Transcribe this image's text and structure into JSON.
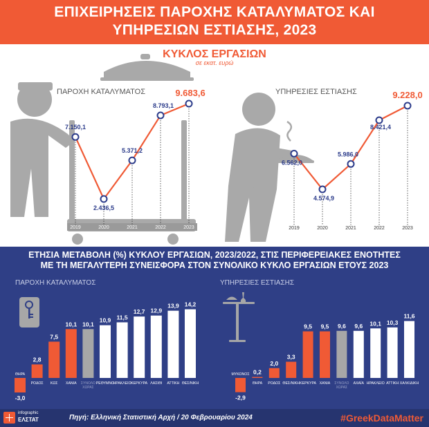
{
  "header": {
    "title_line1": "ΕΠΙΧΕΙΡΗΣΕΙΣ ΠΑΡΟΧΗΣ ΚΑΤΑΛΥΜΑΤΟΣ ΚΑΙ",
    "title_line2": "ΥΠΗΡΕΣΙΩΝ ΕΣΤΙΑΣΗΣ, 2023"
  },
  "turnover": {
    "title": "ΚΥΚΛΟΣ ΕΡΓΑΣΙΩΝ",
    "subtitle": "σε εκατ. ευρώ"
  },
  "annual": {
    "title_line1": "ΕΤΗΣΙΑ ΜΕΤΑΒΟΛΗ (%) ΚΥΚΛΟΥ ΕΡΓΑΣΙΩΝ, 2023/2022, ΣΤΙΣ ΠΕΡΙΦΕΡΕΙΑΚΕΣ ΕΝΟΤΗΤΕΣ",
    "title_line2": "ΜΕ ΤΗ ΜΕΓΑΛΥΤΕΡΗ ΣΥΝΕΙΣΦΟΡΑ ΣΤΟΝ ΣΥΝΟΛΙΚΟ ΚΥΚΛΟ ΕΡΓΑΣΙΩΝ ΕΤΟΥΣ 2023"
  },
  "footer": {
    "logo_line1": "infographic",
    "logo_line2": "ΕΛΣΤΑΤ",
    "source": "Πηγή: Ελληνική Στατιστική Αρχή  / 20 Φεβρουαρίου 2024",
    "hashtag": "#GreekDataMatter"
  },
  "colors": {
    "orange": "#f05a35",
    "navy": "#2f3f86",
    "line_marker": "#2b3b8a",
    "gray_bar": "#a7a7a7",
    "white_bar": "#ffffff"
  },
  "chart_data": [
    {
      "type": "line",
      "title": "ΠΑΡΟΧΗ ΚΑΤΑΛΥΜΑΤΟΣ",
      "x": [
        "2019",
        "2020",
        "2021",
        "2022",
        "2023"
      ],
      "series": [
        {
          "values": [
            7150.1,
            2436.5,
            5371.2,
            8793.1,
            9683.6
          ]
        }
      ],
      "value_labels": [
        "7.150,1",
        "2.436,5",
        "5.371,2",
        "8.793,1",
        "9.683,6"
      ],
      "highlight_last": true
    },
    {
      "type": "line",
      "title": "ΥΠΗΡΕΣΙΕΣ ΕΣΤΙΑΣΗΣ",
      "x": [
        "2019",
        "2020",
        "2021",
        "2022",
        "2023"
      ],
      "series": [
        {
          "values": [
            6562.0,
            4574.9,
            5986.0,
            8421.4,
            9228.0
          ]
        }
      ],
      "value_labels": [
        "6.562,0",
        "4.574,9",
        "5.986,0",
        "8.421,4",
        "9.228,0"
      ],
      "highlight_last": true
    },
    {
      "type": "bar",
      "title": "ΠΑΡΟΧΗ ΚΑΤΑΛΥΜΑΤΟΣ",
      "categories": [
        "ΘΗΡΑ",
        "ΡΟΔΟΣ",
        "ΚΩΣ",
        "ΧΑΝΙΑ",
        "ΣΥΝΟΛΟ ΧΩΡΑΣ",
        "ΡΕΘΥΜΝΟ",
        "ΗΡΑΚΛΕΙΟ",
        "ΚΕΡΚΥΡΑ",
        "ΛΑΣΙΘΙ",
        "ΑΤΤΙΚΗ",
        "ΘΕΣ/ΝΙΚΗ"
      ],
      "values": [
        -3.0,
        2.8,
        7.5,
        10.1,
        10.1,
        10.9,
        11.5,
        12.7,
        12.9,
        13.9,
        14.2
      ],
      "value_labels": [
        "-3,0",
        "2,8",
        "7,5",
        "10,1",
        "10,1",
        "10,9",
        "11,5",
        "12,7",
        "12,9",
        "13,9",
        "14,2"
      ],
      "bar_colors": [
        "orange",
        "orange",
        "orange",
        "orange",
        "gray",
        "white",
        "white",
        "white",
        "white",
        "white",
        "white"
      ]
    },
    {
      "type": "bar",
      "title": "ΥΠΗΡΕΣΙΕΣ ΕΣΤΙΑΣΗΣ",
      "categories": [
        "ΜΥΚΟΝΟΣ",
        "ΘΗΡΑ",
        "ΡΟΔΟΣ",
        "ΘΕΣ/ΝΙΚΗ",
        "ΚΕΡΚΥΡΑ",
        "ΧΑΝΙΑ",
        "ΣΥΝΟΛΟ ΧΩΡΑΣ",
        "ΑΧΑΪΑ",
        "ΗΡΑΚΛΕΙΟ",
        "ΑΤΤΙΚΗ",
        "ΧΑΛΚΙΔΙΚΗ"
      ],
      "values": [
        -2.9,
        0.2,
        2.0,
        3.3,
        9.5,
        9.5,
        9.6,
        9.6,
        10.1,
        10.3,
        11.6
      ],
      "value_labels": [
        "-2,9",
        "0,2",
        "2,0",
        "3,3",
        "9,5",
        "9,5",
        "9,6",
        "9,6",
        "10,1",
        "10,3",
        "11,6"
      ],
      "bar_colors": [
        "orange",
        "orange",
        "orange",
        "orange",
        "orange",
        "orange",
        "gray",
        "white",
        "white",
        "white",
        "white"
      ]
    }
  ]
}
